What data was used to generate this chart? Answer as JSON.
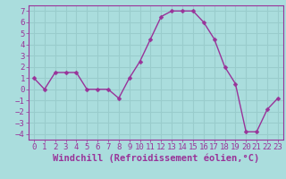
{
  "x": [
    0,
    1,
    2,
    3,
    4,
    5,
    6,
    7,
    8,
    9,
    10,
    11,
    12,
    13,
    14,
    15,
    16,
    17,
    18,
    19,
    20,
    21,
    22,
    23
  ],
  "y": [
    1.0,
    0.0,
    1.5,
    1.5,
    1.5,
    0.0,
    0.0,
    0.0,
    -0.8,
    1.0,
    2.5,
    4.5,
    6.5,
    7.0,
    7.0,
    7.0,
    6.0,
    4.5,
    2.0,
    0.5,
    -3.8,
    -3.8,
    -1.8,
    -0.8
  ],
  "line_color": "#993399",
  "marker_color": "#993399",
  "bg_color": "#aadddd",
  "grid_color": "#99cccc",
  "xlabel": "Windchill (Refroidissement éolien,°C)",
  "xlim_min": -0.5,
  "xlim_max": 23.5,
  "ylim_min": -4.5,
  "ylim_max": 7.5,
  "yticks": [
    -4,
    -3,
    -2,
    -1,
    0,
    1,
    2,
    3,
    4,
    5,
    6,
    7
  ],
  "xticks": [
    0,
    1,
    2,
    3,
    4,
    5,
    6,
    7,
    8,
    9,
    10,
    11,
    12,
    13,
    14,
    15,
    16,
    17,
    18,
    19,
    20,
    21,
    22,
    23
  ],
  "xlabel_fontsize": 7.5,
  "tick_fontsize": 6.5,
  "line_width": 1.0,
  "marker_size": 2.5
}
